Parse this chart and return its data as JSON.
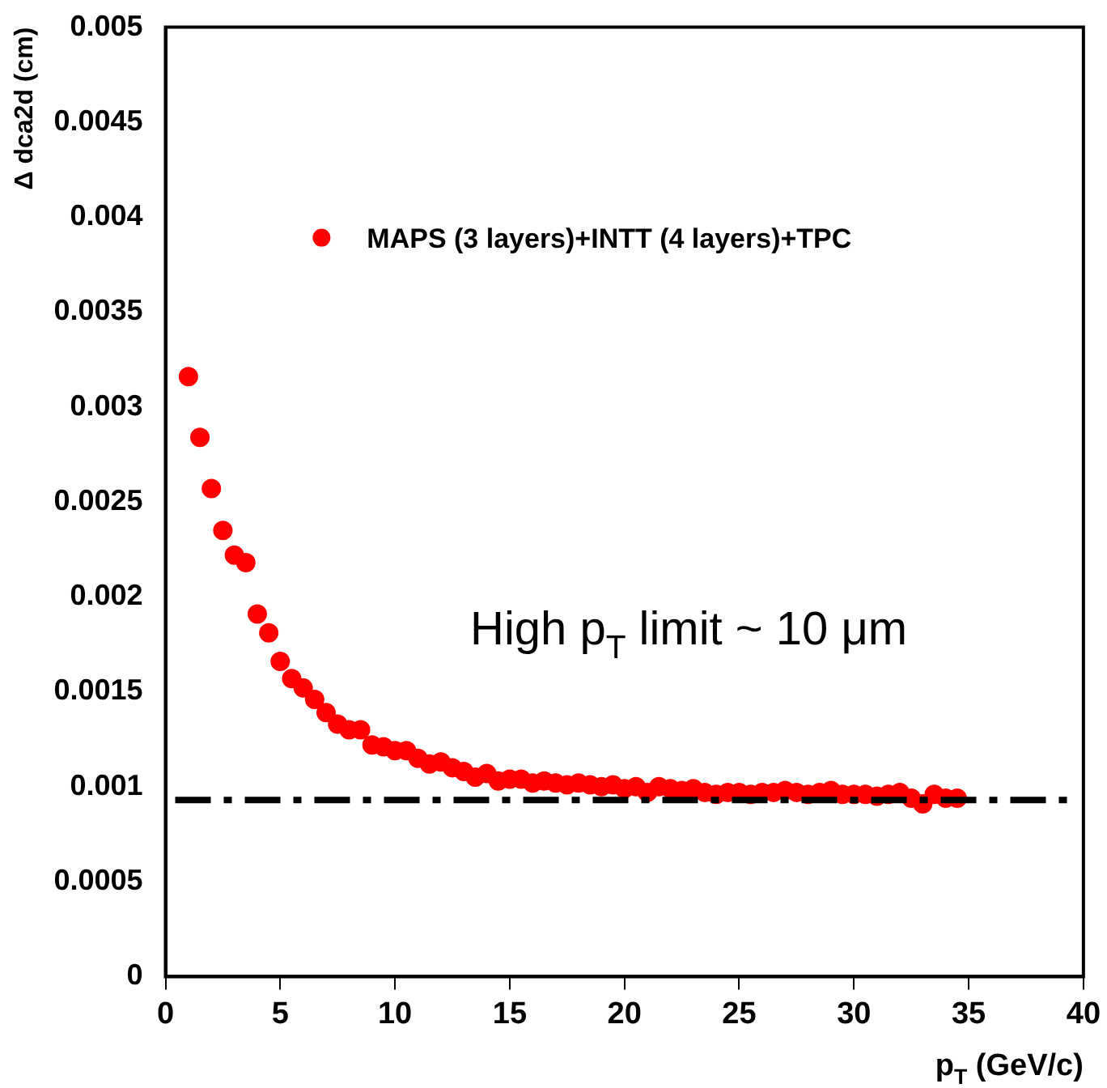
{
  "chart_data": {
    "type": "scatter",
    "xlabel": "p$_{T}$ (GeV/c)",
    "ylabel": "Δ dca2d (cm)",
    "xlim": [
      0,
      40
    ],
    "xticks": [
      0,
      5,
      10,
      15,
      20,
      25,
      30,
      35,
      40
    ],
    "ylim": [
      0,
      0.005
    ],
    "yticks": [
      0,
      0.0005,
      0.001,
      0.0015,
      0.002,
      0.0025,
      0.003,
      0.0035,
      0.004,
      0.0045,
      0.005
    ],
    "marker": "circle",
    "legend": "top",
    "grid": false,
    "series": [
      {
        "name": "MAPS (3 layers)+INTT (4 layers)+TPC",
        "color": "#ff0000",
        "x": [
          1,
          1.5,
          2,
          2.5,
          3,
          3.5,
          4,
          4.5,
          5,
          5.5,
          6,
          6.5,
          7,
          7.5,
          8,
          8.5,
          9,
          9.5,
          10,
          10.5,
          11,
          11.5,
          12,
          12.5,
          13,
          13.5,
          14,
          14.5,
          15,
          15.5,
          16,
          16.5,
          17,
          17.5,
          18,
          18.5,
          19,
          19.5,
          20,
          20.5,
          21,
          21.5,
          22,
          22.5,
          23,
          23.5,
          24,
          24.5,
          25,
          25.5,
          26,
          26.5,
          27,
          27.5,
          28,
          28.5,
          29,
          29.5,
          30,
          30.5,
          31,
          31.5,
          32,
          32.5,
          33,
          33.5,
          34,
          34.5
        ],
        "values": [
          0.00316,
          0.00284,
          0.00257,
          0.00235,
          0.00222,
          0.00218,
          0.00191,
          0.00181,
          0.00166,
          0.00157,
          0.00152,
          0.00146,
          0.00139,
          0.00133,
          0.0013,
          0.0013,
          0.00122,
          0.00121,
          0.00119,
          0.00119,
          0.00115,
          0.00112,
          0.00113,
          0.0011,
          0.00108,
          0.00105,
          0.00107,
          0.00103,
          0.00104,
          0.00104,
          0.00102,
          0.00103,
          0.00102,
          0.00101,
          0.00102,
          0.00101,
          0.001,
          0.00101,
          0.00099,
          0.001,
          0.00097,
          0.001,
          0.00099,
          0.00098,
          0.00099,
          0.00097,
          0.00096,
          0.00097,
          0.00097,
          0.00096,
          0.00097,
          0.00097,
          0.00098,
          0.00097,
          0.00096,
          0.00097,
          0.00098,
          0.00096,
          0.00096,
          0.00096,
          0.00095,
          0.00096,
          0.00097,
          0.00094,
          0.00091,
          0.00096,
          0.00094,
          0.00094
        ]
      }
    ],
    "ref_lines": [
      {
        "axis": "y",
        "value": 0.00093,
        "color": "#000000",
        "line_style": "dashed"
      }
    ],
    "annotations": [
      "High p$_{T}$ limit ~ 10 μm"
    ]
  }
}
